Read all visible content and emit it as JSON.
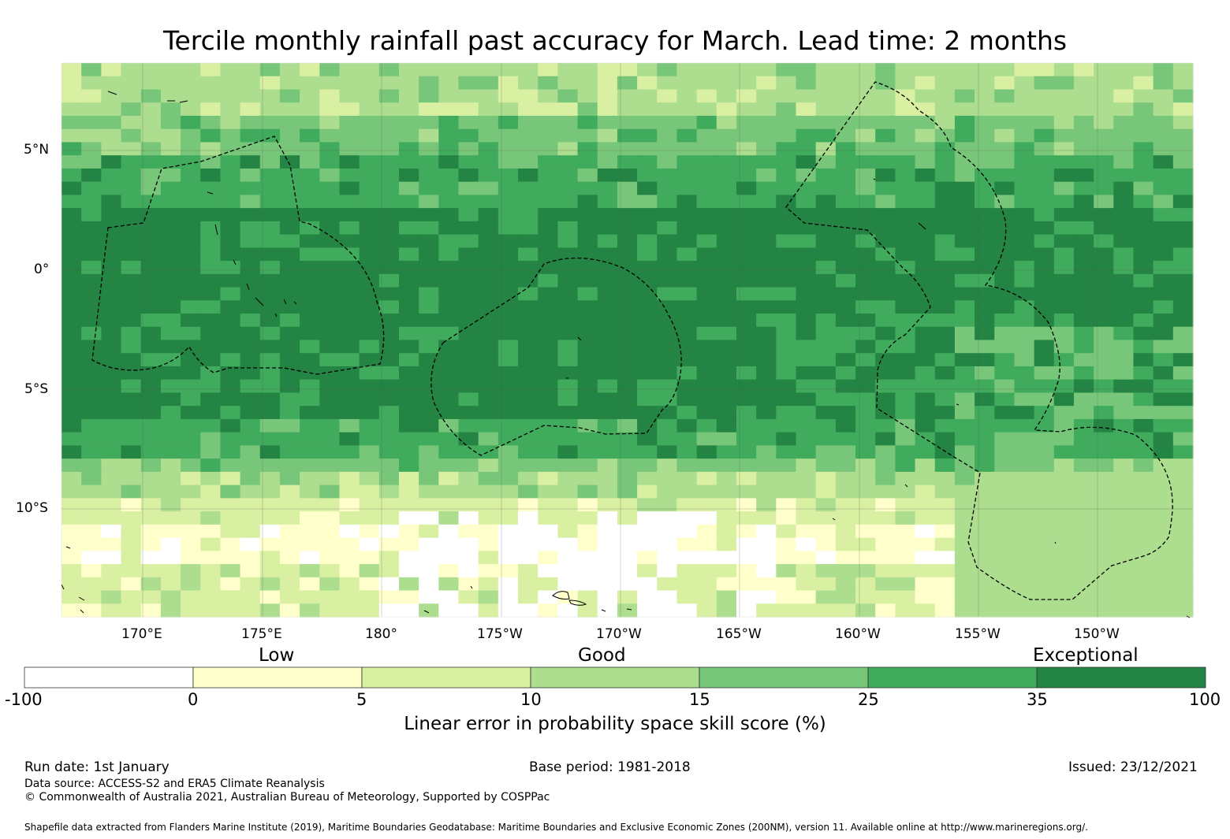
{
  "title": "Tercile monthly rainfall past accuracy for March. Lead time: 2 months",
  "map": {
    "lon_labels": [
      "170°E",
      "175°E",
      "180°",
      "175°W",
      "170°W",
      "165°W",
      "160°W",
      "155°W",
      "150°W"
    ],
    "lat_labels": [
      "5°N",
      "0°",
      "5°S",
      "10°S"
    ],
    "lon_range": [
      "166.6°E",
      "146.3°W"
    ],
    "lat_range": [
      "8.7°N",
      "14.5°S"
    ]
  },
  "colorbar": {
    "categories": [
      "Low",
      "Good",
      "Exceptional"
    ],
    "ticks": [
      "-100",
      "0",
      "5",
      "10",
      "15",
      "25",
      "35",
      "100"
    ],
    "colors": [
      "#ffffff",
      "#ffffcc",
      "#d9f0a3",
      "#addd8e",
      "#78c679",
      "#41ab5d",
      "#238443"
    ],
    "title": "Linear error in probability space skill score (%)"
  },
  "footer": {
    "run_date": "Run date: 1st January",
    "base_period": "Base period: 1981-2018",
    "issued": "Issued: 23/12/2021",
    "data_source": "Data source: ACCESS-S2 and ERA5 Climate Reanalysis",
    "copyright": "© Commonwealth of Australia 2021, Australian Bureau of Meteorology, Supported by COSPPac",
    "shapefile": "Shapefile data extracted from Flanders Marine Institute (2019), Maritime Boundaries Geodatabase: Maritime Boundaries and Exclusive Economic Zones (200NM), version 11. Available online at http://www.marineregions.org/."
  }
}
